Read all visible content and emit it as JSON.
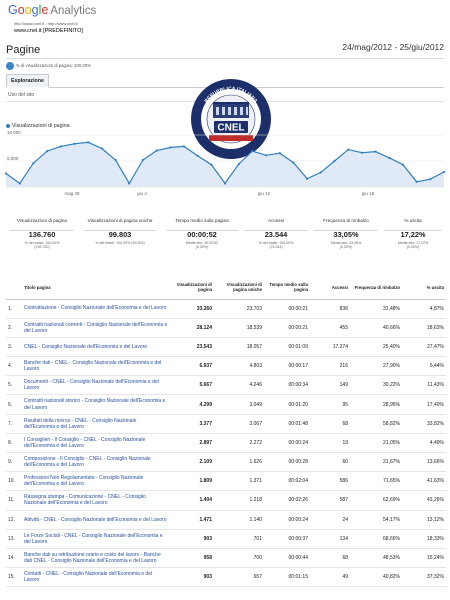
{
  "header": {
    "logo_google": "Google",
    "logo_product": "Analytics",
    "site_url": "http://www.cnel.it - http://www.cnel.it",
    "profile": "www.cnel.it [PREDEFINITO]",
    "page_title": "Pagine",
    "date_range": "24/mag/2012 - 25/giu/2012",
    "segment": "% di visualizzazioni di pagina: 100,00%"
  },
  "tabs": {
    "explore": "Esplorazione",
    "site_usage": "Uso del sito"
  },
  "logo": {
    "name": "CNEL",
    "ring_text": "REPUBBLICA ITALIANA"
  },
  "chart": {
    "legend": "Visualizzazioni di pagina",
    "y_ticks": [
      "10.000",
      "5.000"
    ],
    "x_ticks": [
      "mag 28",
      "giu 4",
      "giu 12",
      "giu 18"
    ]
  },
  "chart_data": {
    "type": "line",
    "title": "",
    "series": [
      {
        "name": "Visualizzazioni di pagina",
        "values": [
          2600,
          700,
          4600,
          6900,
          7800,
          8300,
          8600,
          7400,
          5200,
          700,
          5200,
          7000,
          7600,
          7800,
          6000,
          4300,
          700,
          4400,
          6900,
          6100,
          6500,
          4700,
          1600,
          2800,
          5000,
          7200,
          6600,
          6800,
          5600,
          4300,
          1000,
          1500,
          2900
        ]
      }
    ],
    "ylim": [
      0,
      10000
    ],
    "grid": true
  },
  "scorecards": [
    {
      "label": "Visualizzazioni di pagina",
      "value": "136.760",
      "sub": "% del totale: 100,00%",
      "sub2": "(136.760)"
    },
    {
      "label": "Visualizzazioni di pagina uniche",
      "value": "99.803",
      "sub": "% del totale: 100,00% (99.803)",
      "sub2": ""
    },
    {
      "label": "Tempo medio sulla pagina",
      "value": "00:00:52",
      "sub": "Media sito: 00:00:52",
      "sub2": "(0,00%)"
    },
    {
      "label": "Accessi",
      "value": "23.544",
      "sub": "% del totale: 100,00%",
      "sub2": "(23.544)"
    },
    {
      "label": "Frequenza di rimbalzo",
      "value": "33,05%",
      "sub": "Media sito: 33,05%",
      "sub2": "(0,00%)"
    },
    {
      "label": "% uscita",
      "value": "17,22%",
      "sub": "Media sito: 17,22%",
      "sub2": "(0,00%)"
    }
  ],
  "table": {
    "headers": [
      "Titolo pagina",
      "Visualizzazioni di pagina",
      "Visualizzazioni di pagina uniche",
      "Tempo medio sulla pagina",
      "Accessi",
      "Frequenza di rimbalzo",
      "% uscita"
    ],
    "rows": [
      {
        "n": "1.",
        "title": "Contrattazione - Consiglio Nazionale dell'Economia e del Lavoro",
        "pv": "33.260",
        "upv": "23.703",
        "time": "00:00:21",
        "acc": "836",
        "bounce": "31,48%",
        "exit": "4,87%"
      },
      {
        "n": "2.",
        "title": "Contratti nazionali correnti - Consiglio Nazionale dell'Economia e del Lavoro",
        "pv": "28.124",
        "upv": "18.539",
        "time": "00:00:21",
        "acc": "455",
        "bounce": "40,66%",
        "exit": "18,63%"
      },
      {
        "n": "3.",
        "title": "CNEL - Consiglio Nazionale dell'Economia e del Lavoro",
        "pv": "23.543",
        "upv": "18.057",
        "time": "00:01:09",
        "acc": "17.274",
        "bounce": "25,40%",
        "exit": "27,47%"
      },
      {
        "n": "4.",
        "title": "Banche dati - CNEL - Consiglio Nazionale dell'Economia e del Lavoro",
        "pv": "6.937",
        "upv": "4.803",
        "time": "00:00:17",
        "acc": "216",
        "bounce": "27,90%",
        "exit": "6,44%"
      },
      {
        "n": "5.",
        "title": "Documenti - CNEL - Consiglio Nazionale dell'Economia e del Lavoro",
        "pv": "5.667",
        "upv": "4.246",
        "time": "00:00:34",
        "acc": "149",
        "bounce": "30,22%",
        "exit": "11,43%"
      },
      {
        "n": "6.",
        "title": "Contratti nazionali storico - Consiglio Nazionale dell'Economia e del Lavoro",
        "pv": "4.299",
        "upv": "3.049",
        "time": "00:01:20",
        "acc": "95",
        "bounce": "28,95%",
        "exit": "17,40%"
      },
      {
        "n": "7.",
        "title": "Risultati della ricerca - CNEL - Consiglio Nazionale dell'Economia e del Lavoro",
        "pv": "3.377",
        "upv": "3.067",
        "time": "00:01:48",
        "acc": "68",
        "bounce": "58,82%",
        "exit": "33,82%"
      },
      {
        "n": "8.",
        "title": "I Consiglieri - Il Consiglio - CNEL - Consiglio Nazionale dell'Economia e del Lavoro",
        "pv": "2.897",
        "upv": "2.272",
        "time": "00:00:24",
        "acc": "19",
        "bounce": "21,05%",
        "exit": "4,49%"
      },
      {
        "n": "9.",
        "title": "Composizione - Il Consiglio - CNEL - Consiglio Nazionale dell'Economia e del Lavoro",
        "pv": "2.109",
        "upv": "1.626",
        "time": "00:00:28",
        "acc": "60",
        "bounce": "21,67%",
        "exit": "13,66%"
      },
      {
        "n": "10.",
        "title": "Professioni Non Regolamentate - Consiglio Nazionale dell'Economia e del Lavoro",
        "pv": "1.809",
        "upv": "1.371",
        "time": "00:02:04",
        "acc": "586",
        "bounce": "71,65%",
        "exit": "41,63%"
      },
      {
        "n": "11.",
        "title": "Rassegna stampa - Comunicazione - CNEL - Consiglio Nazionale dell'Economia e del Lavoro",
        "pv": "1.404",
        "upv": "1.218",
        "time": "00:02:26",
        "acc": "587",
        "bounce": "62,69%",
        "exit": "43,26%"
      },
      {
        "n": "12.",
        "title": "Attività - CNEL - Consiglio Nazionale dell'Economia e del Lavoro",
        "pv": "1.471",
        "upv": "1.140",
        "time": "00:00:24",
        "acc": "24",
        "bounce": "54,17%",
        "exit": "13,12%"
      },
      {
        "n": "13.",
        "title": "Le Forze Sociali - CNEL - Consiglio Nazionale dell'Economia e del Lavoro",
        "pv": "903",
        "upv": "701",
        "time": "00:00:37",
        "acc": "134",
        "bounce": "68,66%",
        "exit": "18,33%"
      },
      {
        "n": "14.",
        "title": "Banche dati su retribuzione orario e costo del lavoro - Banche dati CNEL - Consiglio Nazionale dell'Economia e del Lavoro",
        "pv": "958",
        "upv": "700",
        "time": "00:00:44",
        "acc": "68",
        "bounce": "48,53%",
        "exit": "15,24%"
      },
      {
        "n": "15.",
        "title": "Contatti - CNEL - Consiglio Nazionale dell'Economia e del Lavoro",
        "pv": "903",
        "upv": "657",
        "time": "00:01:15",
        "acc": "49",
        "bounce": "40,82%",
        "exit": "37,32%"
      }
    ]
  },
  "colors": {
    "line": "#2f7fc1",
    "area": "#dfeaf6",
    "link": "#2a4f9e",
    "logo_navy": "#1c2f6b"
  }
}
